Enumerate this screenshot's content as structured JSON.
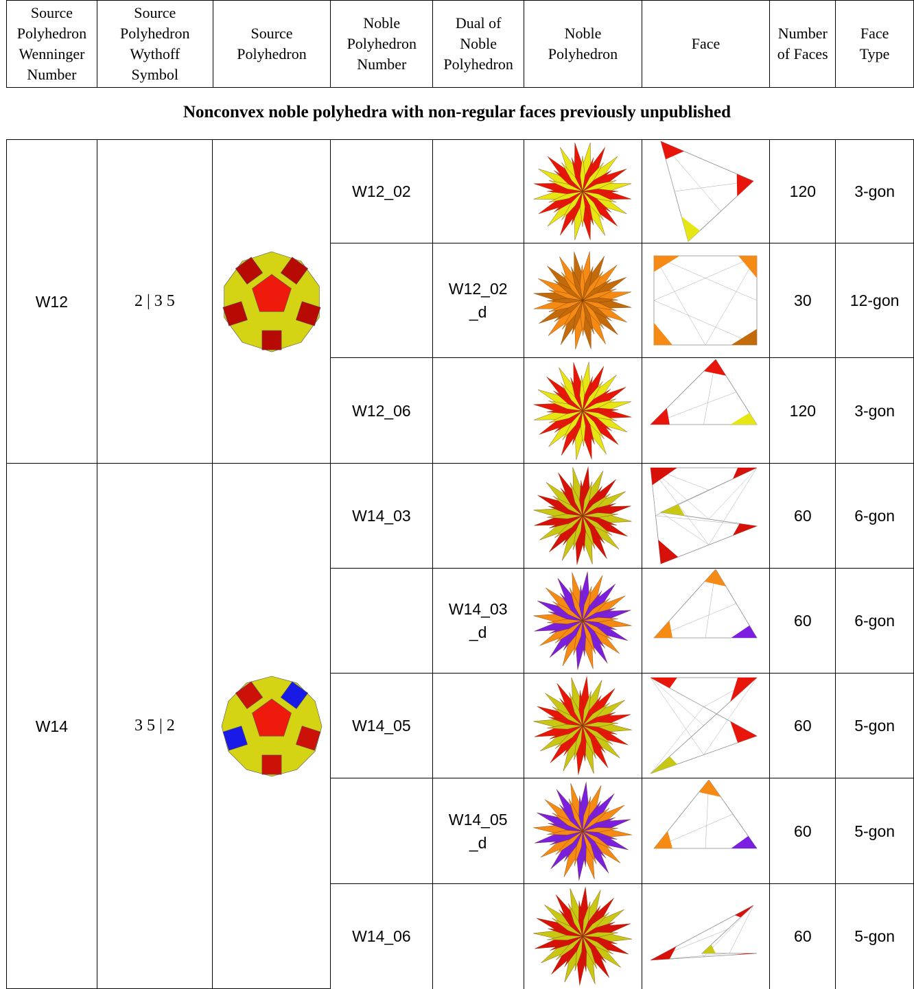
{
  "header": [
    "Source\nPolyhedron\nWenninger\nNumber",
    "Source\nPolyhedron\nWythoff\nSymbol",
    "Source\nPolyhedron",
    "Noble\nPolyhedron\nNumber",
    "Dual of\nNoble\nPolyhedron",
    "Noble\nPolyhedron",
    "Face",
    "Number\nof Faces",
    "Face\nType"
  ],
  "section_title": "Nonconvex noble polyhedra with non-regular faces previously unpublished",
  "groups": [
    {
      "wenninger": "W12",
      "wythoff": "2 | 3 5",
      "source_image": "truncated-icosahedral-polyhedron"
    },
    {
      "wenninger": "W14",
      "wythoff": "3 5 | 2",
      "source_image": "rhombicosidodecahedral-polyhedron"
    }
  ],
  "rows": [
    {
      "noble_number": "W12_02",
      "dual": "",
      "faces": "120",
      "face_type": "3-gon",
      "color": "#e8150a",
      "accent": "#e6e615"
    },
    {
      "noble_number": "",
      "dual": "W12_02\n_d",
      "faces": "30",
      "face_type": "12-gon",
      "color": "#f58a14",
      "accent": "#c36a0a"
    },
    {
      "noble_number": "W12_06",
      "dual": "",
      "faces": "120",
      "face_type": "3-gon",
      "color": "#e8150a",
      "accent": "#e6e615"
    },
    {
      "noble_number": "W14_03",
      "dual": "",
      "faces": "60",
      "face_type": "6-gon",
      "color": "#d8100a",
      "accent": "#c8c814"
    },
    {
      "noble_number": "",
      "dual": "W14_03\n_d",
      "faces": "60",
      "face_type": "6-gon",
      "color": "#f58a14",
      "accent": "#7a1fe0"
    },
    {
      "noble_number": "W14_05",
      "dual": "",
      "faces": "60",
      "face_type": "5-gon",
      "color": "#e8150a",
      "accent": "#c8c814"
    },
    {
      "noble_number": "",
      "dual": "W14_05\n_d",
      "faces": "60",
      "face_type": "5-gon",
      "color": "#f58a14",
      "accent": "#7a1fe0"
    },
    {
      "noble_number": "W14_06",
      "dual": "",
      "faces": "60",
      "face_type": "5-gon",
      "color": "#d8100a",
      "accent": "#c8c814"
    }
  ]
}
